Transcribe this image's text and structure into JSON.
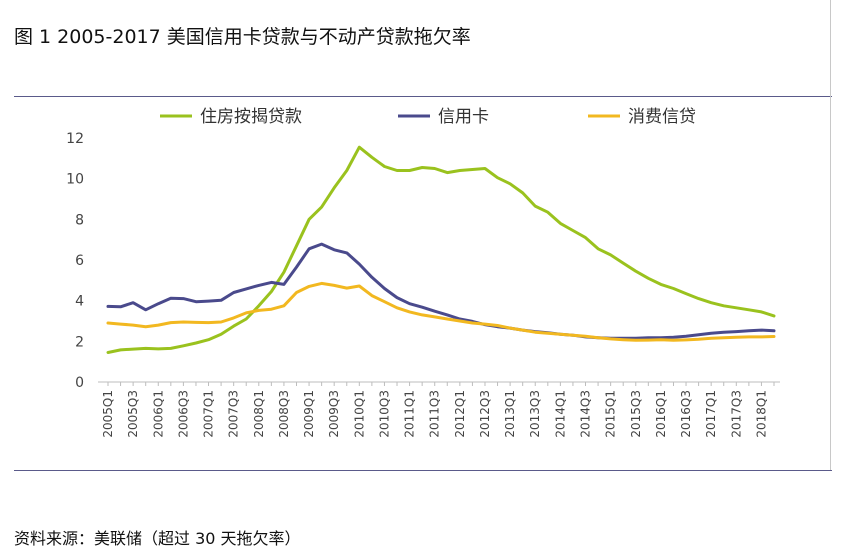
{
  "figure": {
    "title": "图  1 2005-2017 美国信用卡贷款与不动产贷款拖欠率",
    "source": "资料来源：美联储（超过 30 天拖欠率）"
  },
  "chart_data": {
    "type": "line",
    "title": "",
    "xlabel": "",
    "ylabel": "",
    "ylim": [
      0,
      12
    ],
    "yticks": [
      0,
      2,
      4,
      6,
      8,
      10,
      12
    ],
    "grid": false,
    "legend_position": "top",
    "x": [
      "2005Q1",
      "2005Q2",
      "2005Q3",
      "2005Q4",
      "2006Q1",
      "2006Q2",
      "2006Q3",
      "2006Q4",
      "2007Q1",
      "2007Q2",
      "2007Q3",
      "2007Q4",
      "2008Q1",
      "2008Q2",
      "2008Q3",
      "2008Q4",
      "2009Q1",
      "2009Q2",
      "2009Q3",
      "2009Q4",
      "2010Q1",
      "2010Q2",
      "2010Q3",
      "2010Q4",
      "2011Q1",
      "2011Q2",
      "2011Q3",
      "2011Q4",
      "2012Q1",
      "2012Q2",
      "2012Q3",
      "2012Q4",
      "2013Q1",
      "2013Q2",
      "2013Q3",
      "2013Q4",
      "2014Q1",
      "2014Q2",
      "2014Q3",
      "2014Q4",
      "2015Q1",
      "2015Q2",
      "2015Q3",
      "2015Q4",
      "2016Q1",
      "2016Q2",
      "2016Q3",
      "2016Q4",
      "2017Q1",
      "2017Q2",
      "2017Q3",
      "2017Q4",
      "2018Q1",
      "2018Q2"
    ],
    "xtick_labels": [
      "2005Q1",
      "2005Q3",
      "2006Q1",
      "2006Q3",
      "2007Q1",
      "2007Q3",
      "2008Q1",
      "2008Q3",
      "2009Q1",
      "2009Q3",
      "2010Q1",
      "2010Q3",
      "2011Q1",
      "2011Q3",
      "2012Q1",
      "2012Q3",
      "2013Q1",
      "2013Q3",
      "2014Q1",
      "2014Q3",
      "2015Q1",
      "2015Q3",
      "2016Q1",
      "2016Q3",
      "2017Q1",
      "2017Q3",
      "2018Q1"
    ],
    "series": [
      {
        "name": "住房按揭贷款",
        "color": "#9ac21e",
        "values": [
          1.45,
          1.58,
          1.62,
          1.65,
          1.63,
          1.65,
          1.78,
          1.92,
          2.08,
          2.35,
          2.75,
          3.1,
          3.75,
          4.45,
          5.4,
          6.7,
          8.0,
          8.6,
          9.55,
          10.4,
          11.55,
          11.05,
          10.6,
          10.4,
          10.4,
          10.55,
          10.5,
          10.3,
          10.4,
          10.45,
          10.5,
          10.05,
          9.75,
          9.3,
          8.65,
          8.35,
          7.8,
          7.45,
          7.1,
          6.55,
          6.25,
          5.85,
          5.45,
          5.1,
          4.8,
          4.6,
          4.35,
          4.1,
          3.9,
          3.75,
          3.65,
          3.55,
          3.45,
          3.25
        ]
      },
      {
        "name": "信用卡",
        "color": "#4a4a8c",
        "values": [
          3.72,
          3.7,
          3.9,
          3.55,
          3.85,
          4.12,
          4.1,
          3.95,
          3.98,
          4.02,
          4.4,
          4.58,
          4.75,
          4.9,
          4.8,
          5.65,
          6.55,
          6.78,
          6.5,
          6.35,
          5.8,
          5.15,
          4.6,
          4.15,
          3.85,
          3.68,
          3.48,
          3.3,
          3.1,
          2.98,
          2.82,
          2.72,
          2.65,
          2.55,
          2.48,
          2.42,
          2.35,
          2.3,
          2.22,
          2.18,
          2.15,
          2.15,
          2.15,
          2.18,
          2.18,
          2.2,
          2.25,
          2.32,
          2.4,
          2.45,
          2.48,
          2.52,
          2.55,
          2.52
        ]
      },
      {
        "name": "消费信贷",
        "color": "#f2b820",
        "values": [
          2.9,
          2.85,
          2.8,
          2.72,
          2.8,
          2.92,
          2.95,
          2.93,
          2.92,
          2.95,
          3.15,
          3.4,
          3.52,
          3.58,
          3.75,
          4.4,
          4.7,
          4.85,
          4.75,
          4.62,
          4.72,
          4.25,
          3.95,
          3.65,
          3.45,
          3.3,
          3.2,
          3.1,
          3.0,
          2.9,
          2.85,
          2.78,
          2.65,
          2.55,
          2.45,
          2.4,
          2.35,
          2.3,
          2.25,
          2.18,
          2.12,
          2.08,
          2.05,
          2.06,
          2.08,
          2.05,
          2.07,
          2.1,
          2.15,
          2.18,
          2.2,
          2.22,
          2.22,
          2.24
        ]
      }
    ]
  }
}
